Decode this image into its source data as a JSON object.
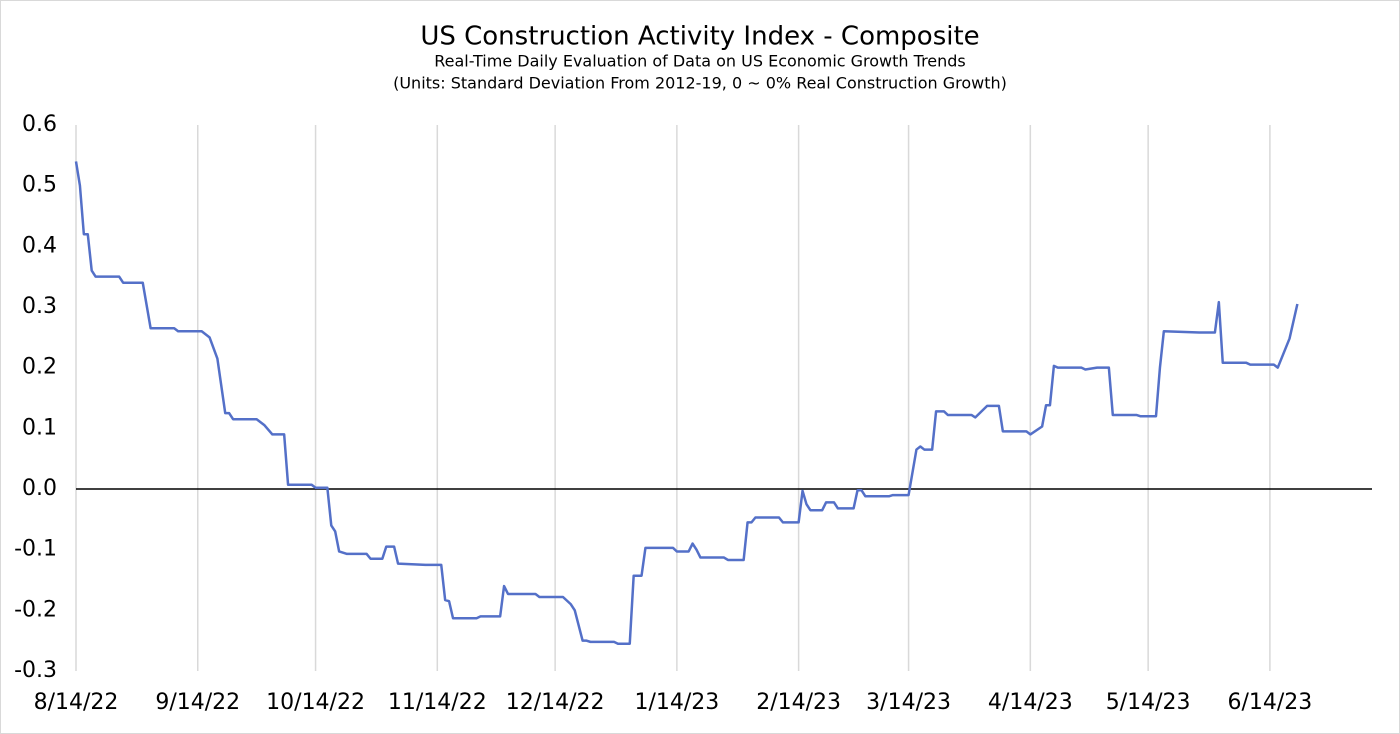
{
  "chart_data": {
    "type": "line",
    "title": "US Construction Activity Index - Composite",
    "subtitle": [
      "Real-Time Daily Evaluation of Data on US Economic Growth Trends",
      "(Units: Standard Deviation From 2012-19, 0 ~ 0% Real Construction Growth)"
    ],
    "x": [
      "2022-08-14",
      "2022-08-15",
      "2022-08-16",
      "2022-08-17",
      "2022-08-18",
      "2022-08-19",
      "2022-08-25",
      "2022-08-26",
      "2022-08-31",
      "2022-09-02",
      "2022-09-08",
      "2022-09-09",
      "2022-09-15",
      "2022-09-17",
      "2022-09-19",
      "2022-09-21",
      "2022-09-22",
      "2022-09-23",
      "2022-09-29",
      "2022-10-01",
      "2022-10-03",
      "2022-10-06",
      "2022-10-07",
      "2022-10-13",
      "2022-10-14",
      "2022-10-17",
      "2022-10-18",
      "2022-10-19",
      "2022-10-20",
      "2022-10-22",
      "2022-10-27",
      "2022-10-28",
      "2022-10-31",
      "2022-11-01",
      "2022-11-03",
      "2022-11-04",
      "2022-11-11",
      "2022-11-15",
      "2022-11-16",
      "2022-11-17",
      "2022-11-18",
      "2022-11-24",
      "2022-11-25",
      "2022-11-30",
      "2022-12-01",
      "2022-12-02",
      "2022-12-09",
      "2022-12-10",
      "2022-12-16",
      "2022-12-18",
      "2022-12-19",
      "2022-12-21",
      "2022-12-22",
      "2022-12-23",
      "2022-12-29",
      "2022-12-30",
      "2023-01-02",
      "2023-01-03",
      "2023-01-05",
      "2023-01-06",
      "2023-01-13",
      "2023-01-14",
      "2023-01-17",
      "2023-01-18",
      "2023-01-19",
      "2023-01-20",
      "2023-01-26",
      "2023-01-27",
      "2023-01-31",
      "2023-02-01",
      "2023-02-02",
      "2023-02-03",
      "2023-02-09",
      "2023-02-10",
      "2023-02-14",
      "2023-02-15",
      "2023-02-16",
      "2023-02-17",
      "2023-02-20",
      "2023-02-21",
      "2023-02-23",
      "2023-02-24",
      "2023-02-28",
      "2023-03-01",
      "2023-03-02",
      "2023-03-03",
      "2023-03-09",
      "2023-03-10",
      "2023-03-14",
      "2023-03-16",
      "2023-03-17",
      "2023-03-18",
      "2023-03-20",
      "2023-03-21",
      "2023-03-23",
      "2023-03-24",
      "2023-03-30",
      "2023-03-31",
      "2023-04-03",
      "2023-04-06",
      "2023-04-07",
      "2023-04-13",
      "2023-04-14",
      "2023-04-17",
      "2023-04-18",
      "2023-04-19",
      "2023-04-20",
      "2023-04-21",
      "2023-04-27",
      "2023-04-28",
      "2023-05-01",
      "2023-05-04",
      "2023-05-05",
      "2023-05-11",
      "2023-05-12",
      "2023-05-16",
      "2023-05-17",
      "2023-05-18",
      "2023-05-27",
      "2023-05-31",
      "2023-06-01",
      "2023-06-02",
      "2023-06-08",
      "2023-06-09",
      "2023-06-15",
      "2023-06-16",
      "2023-06-19",
      "2023-06-21"
    ],
    "series": [
      {
        "color": "#5470c8",
        "values": [
          0.54,
          0.5,
          0.42,
          0.42,
          0.36,
          0.35,
          0.35,
          0.34,
          0.34,
          0.265,
          0.265,
          0.26,
          0.26,
          0.25,
          0.215,
          0.125,
          0.125,
          0.115,
          0.115,
          0.105,
          0.09,
          0.09,
          0.007,
          0.007,
          0.002,
          0.002,
          -0.06,
          -0.07,
          -0.103,
          -0.107,
          -0.107,
          -0.115,
          -0.115,
          -0.095,
          -0.095,
          -0.123,
          -0.125,
          -0.125,
          -0.183,
          -0.185,
          -0.213,
          -0.213,
          -0.21,
          -0.21,
          -0.16,
          -0.173,
          -0.173,
          -0.178,
          -0.178,
          -0.19,
          -0.2,
          -0.25,
          -0.25,
          -0.252,
          -0.252,
          -0.255,
          -0.255,
          -0.143,
          -0.143,
          -0.097,
          -0.097,
          -0.103,
          -0.103,
          -0.09,
          -0.1,
          -0.113,
          -0.113,
          -0.117,
          -0.117,
          -0.055,
          -0.055,
          -0.047,
          -0.047,
          -0.055,
          -0.055,
          -0.003,
          -0.025,
          -0.035,
          -0.035,
          -0.022,
          -0.022,
          -0.032,
          -0.032,
          -0.002,
          -0.002,
          -0.012,
          -0.012,
          -0.01,
          -0.01,
          0.065,
          0.07,
          0.065,
          0.065,
          0.128,
          0.128,
          0.122,
          0.122,
          0.118,
          0.137,
          0.137,
          0.095,
          0.095,
          0.09,
          0.103,
          0.138,
          0.138,
          0.203,
          0.2,
          0.2,
          0.197,
          0.2,
          0.2,
          0.122,
          0.122,
          0.12,
          0.12,
          0.2,
          0.26,
          0.258,
          0.258,
          0.308,
          0.208,
          0.208,
          0.205,
          0.205,
          0.2,
          0.248,
          0.305
        ]
      }
    ],
    "xlim": [
      "2022-08-14",
      "2023-07-10"
    ],
    "xticks": [
      {
        "value": "2022-08-14",
        "label": "8/14/22"
      },
      {
        "value": "2022-09-14",
        "label": "9/14/22"
      },
      {
        "value": "2022-10-14",
        "label": "10/14/22"
      },
      {
        "value": "2022-11-14",
        "label": "11/14/22"
      },
      {
        "value": "2022-12-14",
        "label": "12/14/22"
      },
      {
        "value": "2023-01-14",
        "label": "1/14/23"
      },
      {
        "value": "2023-02-14",
        "label": "2/14/23"
      },
      {
        "value": "2023-03-14",
        "label": "3/14/23"
      },
      {
        "value": "2023-04-14",
        "label": "4/14/23"
      },
      {
        "value": "2023-05-14",
        "label": "5/14/23"
      },
      {
        "value": "2023-06-14",
        "label": "6/14/23"
      }
    ],
    "ylim": [
      -0.3,
      0.6
    ],
    "yticks": [
      0.6,
      0.5,
      0.4,
      0.3,
      0.2,
      0.1,
      {
        "value": 0,
        "label": "0.0"
      },
      -0.1,
      -0.2,
      -0.3
    ],
    "grid": "x"
  }
}
